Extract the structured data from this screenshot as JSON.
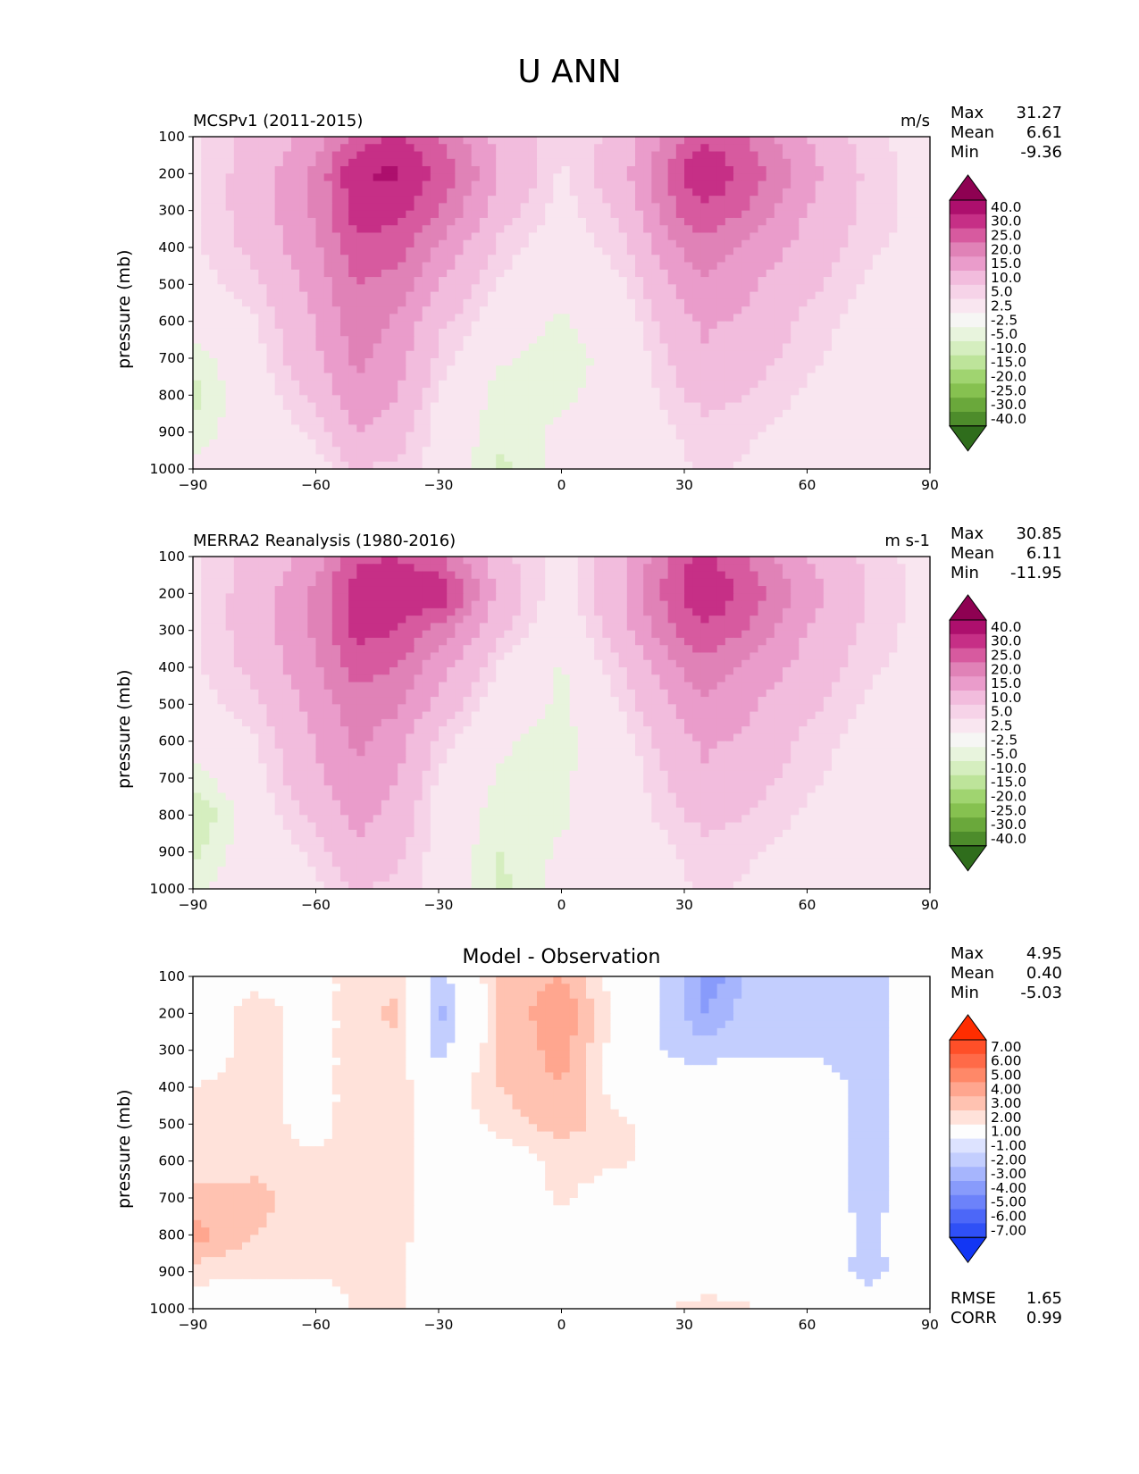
{
  "title": "U ANN",
  "panels": [
    {
      "id": "model",
      "left_title": "MCSPv1 (2011-2015)",
      "right_title": "m/s",
      "center_title": "",
      "stats": [
        [
          "Max",
          "31.27"
        ],
        [
          "Mean",
          "6.61"
        ],
        [
          "Min",
          "-9.36"
        ]
      ],
      "extra_stats": []
    },
    {
      "id": "obs",
      "left_title": "MERRA2 Reanalysis (1980-2016)",
      "right_title": "m s-1",
      "center_title": "",
      "stats": [
        [
          "Max",
          "30.85"
        ],
        [
          "Mean",
          "6.11"
        ],
        [
          "Min",
          "-11.95"
        ]
      ],
      "extra_stats": []
    },
    {
      "id": "diff",
      "left_title": "",
      "right_title": "",
      "center_title": "Model - Observation",
      "stats": [
        [
          "Max",
          "4.95"
        ],
        [
          "Mean",
          "0.40"
        ],
        [
          "Min",
          "-5.03"
        ]
      ],
      "extra_stats": [
        [
          "RMSE",
          "1.65"
        ],
        [
          "CORR",
          "0.99"
        ]
      ]
    }
  ],
  "colorbars": {
    "wind": {
      "labels": [
        "40.0",
        "30.0",
        "25.0",
        "20.0",
        "15.0",
        "10.0",
        "5.0",
        "2.5",
        "-2.5",
        "-5.0",
        "-10.0",
        "-15.0",
        "-20.0",
        "-25.0",
        "-30.0",
        "-40.0"
      ],
      "colors": [
        "#8e0152",
        "#ad0f6d",
        "#c62f86",
        "#d75a9f",
        "#e082b7",
        "#ea9ccb",
        "#f2bcdd",
        "#f6d3e8",
        "#f9e6f0",
        "#f6f6f4",
        "#e8f4dd",
        "#d5eebf",
        "#bde49a",
        "#a0d470",
        "#86c150",
        "#6aa83b",
        "#4d8c2b",
        "#2f6d1c"
      ]
    },
    "diff": {
      "labels": [
        "7.00",
        "6.00",
        "5.00",
        "4.00",
        "3.00",
        "2.00",
        "1.00",
        "-1.00",
        "-2.00",
        "-3.00",
        "-4.00",
        "-5.00",
        "-6.00",
        "-7.00"
      ],
      "colors": [
        "#ff2d00",
        "#ff4f28",
        "#ff6a48",
        "#ff8868",
        "#ffa68f",
        "#ffc2b1",
        "#ffe2da",
        "#fdfdfd",
        "#dde3ff",
        "#c3cefe",
        "#a6b5fd",
        "#889bfb",
        "#6c82fa",
        "#4c67f8",
        "#2f50f6",
        "#1236f4"
      ]
    }
  },
  "axes": {
    "ylabel": "pressure (mb)",
    "yticks": [
      "100",
      "200",
      "300",
      "400",
      "500",
      "600",
      "700",
      "800",
      "900",
      "1000"
    ],
    "xticks": [
      "−90",
      "−60",
      "−30",
      "0",
      "30",
      "60",
      "90"
    ]
  },
  "chart_data": [
    {
      "type": "heatmap",
      "title": "MCSPv1 (2011-2015)",
      "units": "m/s",
      "xlabel": "",
      "ylabel": "pressure (mb)",
      "xlim": [
        -90,
        90
      ],
      "ylim": [
        1000,
        100
      ],
      "levels": [
        -40,
        -30,
        -25,
        -20,
        -15,
        -10,
        -5,
        -2.5,
        2.5,
        5,
        10,
        15,
        20,
        25,
        30,
        40
      ],
      "x": [
        -90,
        -75,
        -60,
        -50,
        -40,
        -30,
        -15,
        0,
        15,
        30,
        35,
        45,
        60,
        75,
        90
      ],
      "y": [
        100,
        200,
        300,
        400,
        500,
        600,
        700,
        800,
        900,
        1000
      ],
      "z": [
        [
          2,
          6,
          12,
          22,
          26,
          20,
          8,
          3,
          6,
          20,
          24,
          20,
          10,
          3,
          1
        ],
        [
          2,
          7,
          16,
          30,
          31,
          24,
          10,
          2,
          8,
          26,
          30,
          24,
          12,
          4,
          1
        ],
        [
          2,
          7,
          16,
          27,
          27,
          20,
          7,
          1,
          6,
          22,
          24,
          20,
          10,
          4,
          1
        ],
        [
          2,
          6,
          14,
          24,
          22,
          14,
          4,
          0,
          4,
          16,
          18,
          14,
          8,
          3,
          1
        ],
        [
          1,
          4,
          12,
          20,
          18,
          10,
          2,
          -1,
          2,
          12,
          14,
          11,
          6,
          2,
          1
        ],
        [
          0,
          2,
          10,
          18,
          14,
          6,
          0,
          -3,
          0,
          9,
          11,
          9,
          4,
          1,
          1
        ],
        [
          -4,
          1,
          9,
          16,
          12,
          4,
          -2,
          -4,
          -1,
          7,
          9,
          7,
          3,
          1,
          1
        ],
        [
          -6,
          0,
          6,
          14,
          10,
          2,
          -4,
          -3,
          -1,
          5,
          6,
          5,
          2,
          1,
          1
        ],
        [
          -4,
          0,
          3,
          10,
          7,
          1,
          -4,
          -2,
          -1,
          3,
          4,
          3,
          1,
          1,
          1
        ],
        [
          -2,
          0,
          1,
          5,
          4,
          1,
          -6,
          -1,
          -1,
          2,
          3,
          2,
          1,
          1,
          1
        ]
      ],
      "max": 31.27,
      "mean": 6.61,
      "min": -9.36
    },
    {
      "type": "heatmap",
      "title": "MERRA2 Reanalysis (1980-2016)",
      "units": "m s-1",
      "xlabel": "",
      "ylabel": "pressure (mb)",
      "xlim": [
        -90,
        90
      ],
      "ylim": [
        1000,
        100
      ],
      "levels": [
        -40,
        -30,
        -25,
        -20,
        -15,
        -10,
        -5,
        -2.5,
        2.5,
        5,
        10,
        15,
        20,
        25,
        30,
        40
      ],
      "x": [
        -90,
        -75,
        -60,
        -50,
        -40,
        -30,
        -15,
        0,
        15,
        30,
        35,
        45,
        60,
        75,
        90
      ],
      "y": [
        100,
        200,
        300,
        400,
        500,
        600,
        700,
        800,
        900,
        1000
      ],
      "z": [
        [
          2,
          6,
          12,
          24,
          25,
          20,
          6,
          1,
          8,
          24,
          26,
          20,
          10,
          4,
          1
        ],
        [
          2,
          7,
          16,
          28,
          28,
          30,
          8,
          0,
          10,
          26,
          30,
          24,
          12,
          5,
          1
        ],
        [
          2,
          7,
          16,
          27,
          25,
          18,
          6,
          -1,
          8,
          22,
          24,
          20,
          10,
          4,
          1
        ],
        [
          2,
          6,
          14,
          22,
          20,
          12,
          2,
          -3,
          5,
          16,
          18,
          14,
          8,
          3,
          1
        ],
        [
          1,
          4,
          12,
          18,
          16,
          8,
          0,
          -3,
          3,
          12,
          14,
          11,
          6,
          2,
          1
        ],
        [
          0,
          2,
          10,
          16,
          12,
          4,
          -2,
          -4,
          1,
          9,
          11,
          9,
          4,
          1,
          1
        ],
        [
          -4,
          1,
          9,
          14,
          10,
          2,
          -3,
          -3,
          0,
          7,
          9,
          7,
          3,
          1,
          1
        ],
        [
          -8,
          0,
          6,
          12,
          8,
          1,
          -4,
          -3,
          0,
          5,
          6,
          5,
          2,
          1,
          1
        ],
        [
          -6,
          0,
          3,
          9,
          6,
          1,
          -5,
          -2,
          -1,
          3,
          4,
          3,
          1,
          1,
          1
        ],
        [
          -3,
          0,
          2,
          5,
          4,
          1,
          -6,
          -1,
          -1,
          2,
          3,
          2,
          1,
          1,
          1
        ]
      ],
      "max": 30.85,
      "mean": 6.11,
      "min": -11.95
    },
    {
      "type": "heatmap",
      "title": "Model - Observation",
      "units": "",
      "xlabel": "",
      "ylabel": "pressure (mb)",
      "xlim": [
        -90,
        90
      ],
      "ylim": [
        1000,
        100
      ],
      "levels": [
        -7,
        -6,
        -5,
        -4,
        -3,
        -2,
        -1,
        1,
        2,
        3,
        4,
        5,
        6,
        7
      ],
      "x": [
        -90,
        -75,
        -60,
        -50,
        -40,
        -30,
        -15,
        0,
        15,
        30,
        35,
        45,
        60,
        75,
        90
      ],
      "y": [
        100,
        200,
        300,
        400,
        500,
        600,
        700,
        800,
        900,
        1000
      ],
      "z": [
        [
          0,
          0.5,
          0.5,
          1.5,
          1.5,
          -1.5,
          2,
          3,
          0,
          -1.5,
          -4,
          -2,
          -1.5,
          -1.5,
          0
        ],
        [
          0,
          1.5,
          0.5,
          1.5,
          2.5,
          -2.5,
          2,
          4,
          0.5,
          -2,
          -3,
          -1.5,
          -1.5,
          -1.5,
          0
        ],
        [
          0,
          1.5,
          0.5,
          1.5,
          1.5,
          -1.5,
          2,
          3.5,
          0,
          -1.5,
          -1.5,
          -1.2,
          -1.2,
          -1.5,
          0
        ],
        [
          1,
          1.5,
          0.5,
          1.5,
          1.5,
          0,
          2,
          3,
          0,
          0,
          0,
          0,
          0,
          -1.5,
          0
        ],
        [
          1,
          1.5,
          0.5,
          1.5,
          1.5,
          0,
          1.5,
          2.5,
          1.2,
          0,
          0,
          0,
          0,
          -1.5,
          0
        ],
        [
          1,
          1.5,
          1.2,
          1.5,
          1.5,
          0,
          0,
          1.5,
          1.2,
          0,
          0,
          0,
          0,
          -1.5,
          0
        ],
        [
          2.5,
          2.5,
          1.2,
          1.5,
          1.5,
          0,
          0,
          1.2,
          0,
          0,
          0,
          0,
          0,
          -1.5,
          0
        ],
        [
          3.5,
          2,
          1.2,
          1.5,
          1.5,
          0,
          0,
          0,
          0,
          0,
          0,
          0,
          0,
          -1.2,
          0
        ],
        [
          1.5,
          1.2,
          1.2,
          1.2,
          1.2,
          0,
          0,
          0,
          0,
          0,
          0,
          0,
          0,
          -1.5,
          0
        ],
        [
          0,
          0,
          0,
          1.2,
          1.2,
          0,
          0,
          0,
          0,
          1.2,
          1.5,
          1.2,
          0,
          0,
          0
        ]
      ],
      "max": 4.95,
      "mean": 0.4,
      "min": -5.03,
      "rmse": 1.65,
      "corr": 0.99
    }
  ]
}
